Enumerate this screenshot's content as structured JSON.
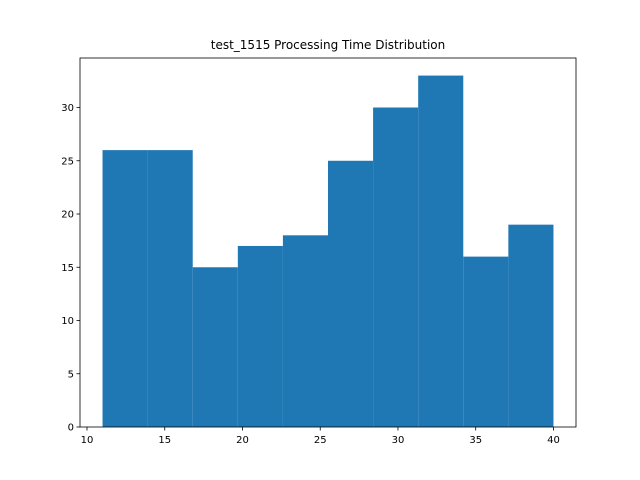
{
  "chart_data": {
    "type": "histogram",
    "title": "test_1515 Processing Time Distribution",
    "bins": [
      11,
      13.9,
      16.8,
      19.7,
      22.6,
      25.5,
      28.4,
      31.3,
      34.2,
      37.1,
      40
    ],
    "values": [
      26,
      26,
      15,
      17,
      18,
      25,
      30,
      33,
      16,
      19
    ],
    "color": "#1f77b4",
    "xlim": [
      9.55,
      41.45
    ],
    "xticks": [
      10,
      15,
      20,
      25,
      30,
      35,
      40
    ],
    "ylim": [
      0,
      34.65
    ],
    "yticks": [
      0,
      5,
      10,
      15,
      20,
      25,
      30
    ],
    "grid": false
  }
}
